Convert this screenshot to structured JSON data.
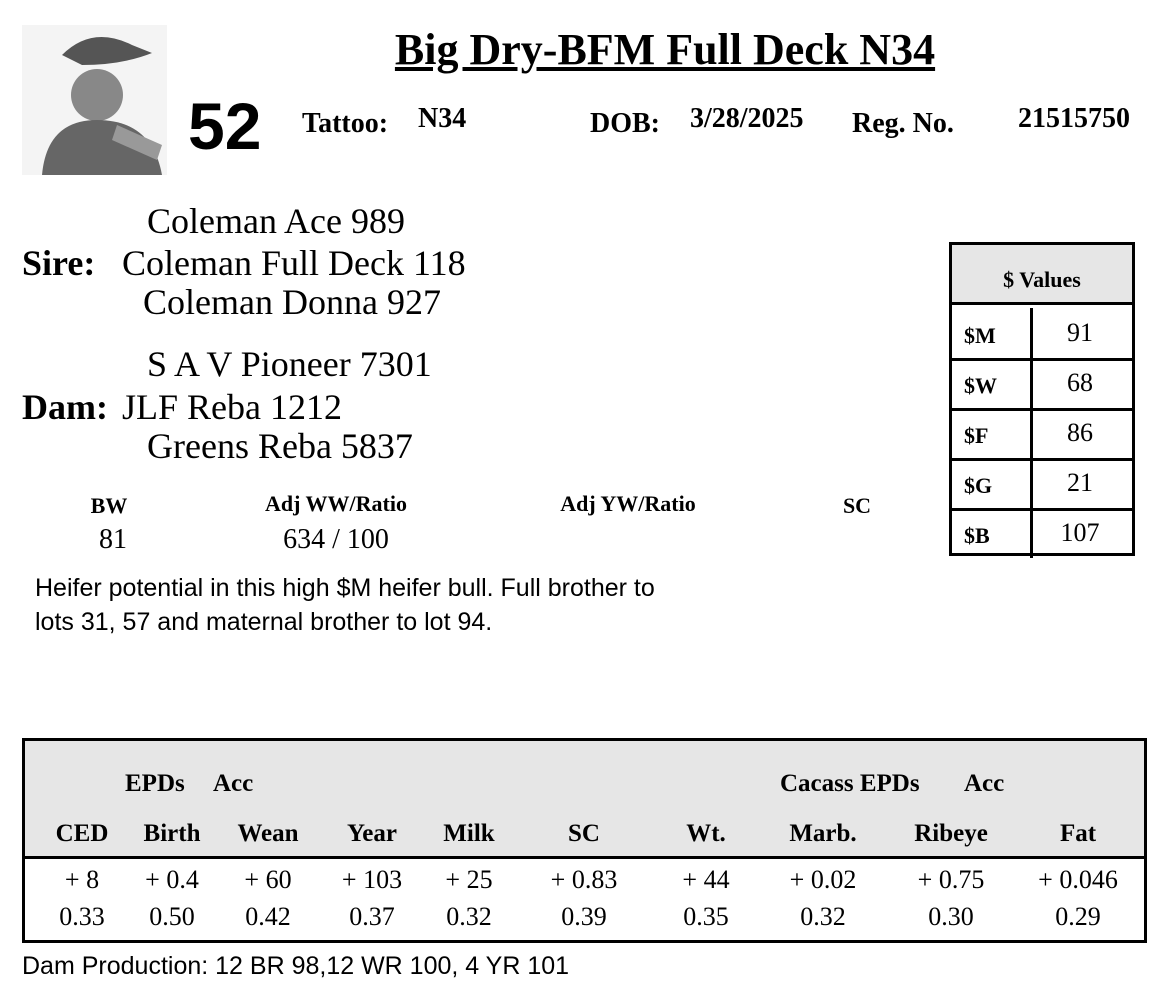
{
  "header": {
    "title": "Big Dry-BFM Full Deck N34",
    "lot": "52",
    "tattoo_label": "Tattoo:",
    "tattoo": "N34",
    "dob_label": "DOB:",
    "dob": "3/28/2025",
    "reg_label": "Reg. No.",
    "reg": "21515750"
  },
  "pedigree": {
    "sire_sire": "Coleman Ace 989",
    "sire_label": "Sire:",
    "sire": "Coleman Full Deck 118",
    "sire_dam": "Coleman Donna 927",
    "dam_sire": "S A V Pioneer 7301",
    "dam_label": "Dam:",
    "dam": "JLF Reba 1212",
    "dam_dam": "Greens Reba 5837"
  },
  "performance": {
    "headers": [
      "BW",
      "Adj WW/Ratio",
      "Adj YW/Ratio",
      "SC"
    ],
    "values": [
      "81",
      "634 / 100"
    ]
  },
  "dollar_values": {
    "title": "$ Values",
    "rows": [
      [
        "$M",
        "91"
      ],
      [
        "$W",
        "68"
      ],
      [
        "$F",
        "86"
      ],
      [
        "$G",
        "21"
      ],
      [
        "$B",
        "107"
      ]
    ]
  },
  "description": [
    "Heifer potential in this high $M heifer bull. Full brother to",
    "lots 31, 57 and maternal brother to lot 94."
  ],
  "epds": {
    "group_labels": [
      "EPDs",
      "Acc",
      "Cacass EPDs",
      "Acc"
    ],
    "columns": [
      "CED",
      "Birth",
      "Wean",
      "Year",
      "Milk",
      "SC",
      "Wt.",
      "Marb.",
      "Ribeye",
      "Fat"
    ],
    "values": [
      "+ 8",
      "+ 0.4",
      "+ 60",
      "+ 103",
      "+ 25",
      "+ 0.83",
      "+ 44",
      "+ 0.02",
      "+ 0.75",
      "+ 0.046"
    ],
    "accuracy": [
      "0.33",
      "0.50",
      "0.42",
      "0.37",
      "0.32",
      "0.39",
      "0.35",
      "0.32",
      "0.30",
      "0.29"
    ]
  },
  "footer": "Dam Production: 12 BR 98,12 WR 100, 4 YR 101"
}
